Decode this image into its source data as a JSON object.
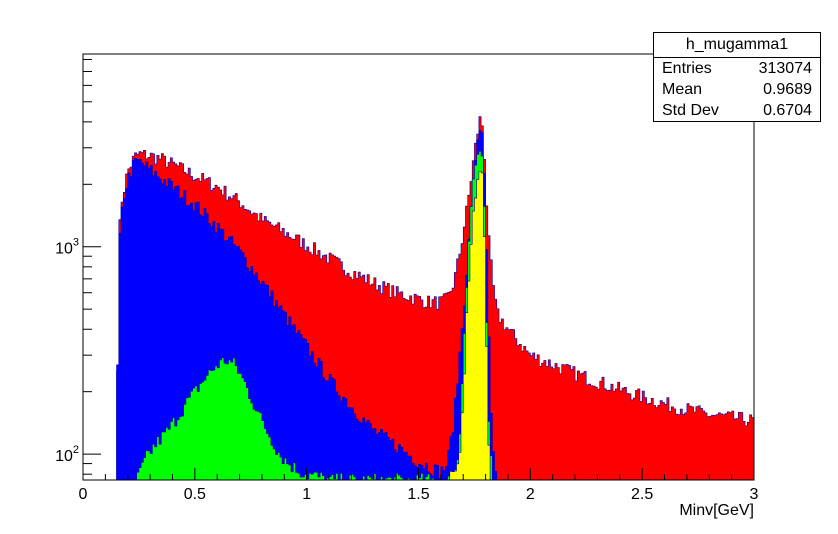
{
  "chart_data": {
    "type": "histogram",
    "xlabel": "Minv[GeV]",
    "ylabel": "",
    "xlim": [
      0,
      3
    ],
    "ylim": [
      75,
      8500
    ],
    "yscale": "log",
    "x_ticks": [
      "0",
      "0.5",
      "1",
      "1.5",
      "2",
      "2.5",
      "3"
    ],
    "y_ticks": [
      {
        "base": "10",
        "exp": "2",
        "value": 100
      },
      {
        "base": "10",
        "exp": "3",
        "value": 1000
      }
    ],
    "bin_width": 0.01,
    "series": [
      {
        "name": "red (all)",
        "color": "#ff0000",
        "points": [
          [
            0.15,
            75
          ],
          [
            0.16,
            1000
          ],
          [
            0.17,
            1600
          ],
          [
            0.2,
            2300
          ],
          [
            0.23,
            2700
          ],
          [
            0.25,
            2800
          ],
          [
            0.3,
            2750
          ],
          [
            0.35,
            2650
          ],
          [
            0.4,
            2500
          ],
          [
            0.5,
            2200
          ],
          [
            0.6,
            1950
          ],
          [
            0.7,
            1650
          ],
          [
            0.8,
            1350
          ],
          [
            0.9,
            1180
          ],
          [
            1.0,
            1020
          ],
          [
            1.1,
            880
          ],
          [
            1.2,
            760
          ],
          [
            1.3,
            670
          ],
          [
            1.4,
            600
          ],
          [
            1.5,
            560
          ],
          [
            1.55,
            540
          ],
          [
            1.6,
            540
          ],
          [
            1.63,
            560
          ],
          [
            1.66,
            680
          ],
          [
            1.69,
            1000
          ],
          [
            1.72,
            1600
          ],
          [
            1.75,
            2800
          ],
          [
            1.77,
            3900
          ],
          [
            1.78,
            4300
          ],
          [
            1.79,
            3500
          ],
          [
            1.8,
            2200
          ],
          [
            1.81,
            1200
          ],
          [
            1.83,
            700
          ],
          [
            1.85,
            480
          ],
          [
            1.9,
            400
          ],
          [
            2.0,
            300
          ],
          [
            2.2,
            245
          ],
          [
            2.4,
            205
          ],
          [
            2.6,
            175
          ],
          [
            2.8,
            155
          ],
          [
            3.0,
            145
          ]
        ]
      },
      {
        "name": "blue",
        "color": "#0000ff",
        "points": [
          [
            0.15,
            75
          ],
          [
            0.16,
            900
          ],
          [
            0.17,
            1300
          ],
          [
            0.18,
            1700
          ],
          [
            0.2,
            2100
          ],
          [
            0.22,
            2400
          ],
          [
            0.24,
            2600
          ],
          [
            0.27,
            2500
          ],
          [
            0.3,
            2350
          ],
          [
            0.4,
            1950
          ],
          [
            0.5,
            1600
          ],
          [
            0.6,
            1250
          ],
          [
            0.7,
            950
          ],
          [
            0.8,
            680
          ],
          [
            0.9,
            470
          ],
          [
            1.0,
            330
          ],
          [
            1.1,
            230
          ],
          [
            1.2,
            170
          ],
          [
            1.3,
            130
          ],
          [
            1.4,
            110
          ],
          [
            1.5,
            92
          ],
          [
            1.6,
            82
          ],
          [
            1.63,
            90
          ],
          [
            1.66,
            150
          ],
          [
            1.69,
            350
          ],
          [
            1.72,
            900
          ],
          [
            1.75,
            2200
          ],
          [
            1.77,
            3500
          ],
          [
            1.78,
            4000
          ],
          [
            1.79,
            3200
          ],
          [
            1.8,
            1700
          ],
          [
            1.81,
            600
          ],
          [
            1.82,
            200
          ],
          [
            1.83,
            110
          ],
          [
            1.85,
            75
          ]
        ]
      },
      {
        "name": "green",
        "color": "#00ff00",
        "points": [
          [
            0.24,
            75
          ],
          [
            0.28,
            95
          ],
          [
            0.32,
            110
          ],
          [
            0.38,
            130
          ],
          [
            0.42,
            150
          ],
          [
            0.46,
            175
          ],
          [
            0.5,
            200
          ],
          [
            0.55,
            235
          ],
          [
            0.6,
            270
          ],
          [
            0.64,
            285
          ],
          [
            0.68,
            270
          ],
          [
            0.72,
            225
          ],
          [
            0.76,
            180
          ],
          [
            0.8,
            145
          ],
          [
            0.84,
            120
          ],
          [
            0.88,
            100
          ],
          [
            0.92,
            90
          ],
          [
            0.96,
            84
          ],
          [
            1.0,
            80
          ],
          [
            1.05,
            78
          ],
          [
            1.1,
            75
          ],
          [
            1.64,
            75
          ],
          [
            1.68,
            95
          ],
          [
            1.7,
            300
          ],
          [
            1.72,
            900
          ],
          [
            1.74,
            1900
          ],
          [
            1.76,
            2700
          ],
          [
            1.78,
            3000
          ],
          [
            1.79,
            2400
          ],
          [
            1.8,
            900
          ],
          [
            1.81,
            180
          ],
          [
            1.83,
            75
          ]
        ]
      },
      {
        "name": "yellow",
        "color": "#ffff00",
        "points": [
          [
            1.64,
            75
          ],
          [
            1.68,
            90
          ],
          [
            1.7,
            200
          ],
          [
            1.72,
            600
          ],
          [
            1.74,
            1300
          ],
          [
            1.76,
            2000
          ],
          [
            1.77,
            2400
          ],
          [
            1.78,
            2500
          ],
          [
            1.79,
            1900
          ],
          [
            1.8,
            700
          ],
          [
            1.81,
            150
          ],
          [
            1.82,
            75
          ]
        ]
      }
    ]
  },
  "stats": {
    "title": "h_mugamma1",
    "rows": [
      {
        "label": "Entries",
        "value": "313074"
      },
      {
        "label": "Mean",
        "value": "0.9689"
      },
      {
        "label": "Std Dev",
        "value": "0.6704"
      }
    ]
  }
}
